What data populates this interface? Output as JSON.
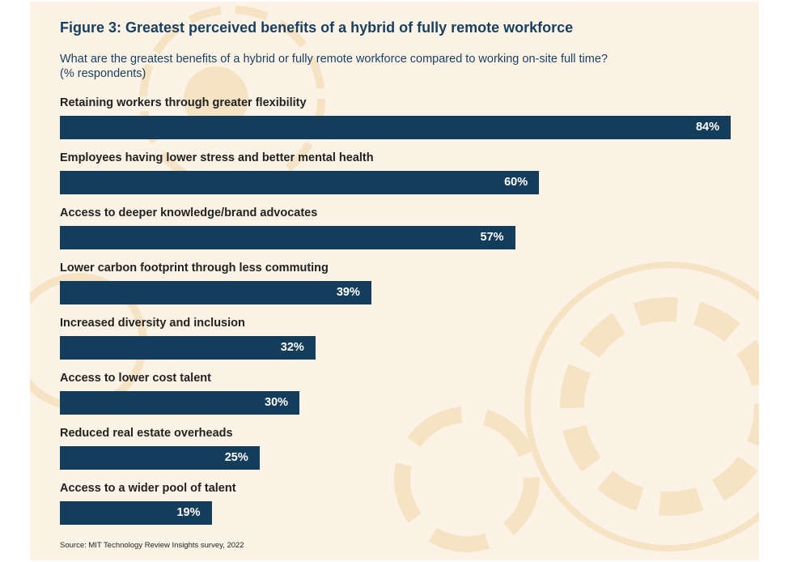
{
  "chart_data": {
    "type": "bar",
    "orientation": "horizontal",
    "title": "Figure 3: Greatest perceived benefits of a hybrid of fully remote workforce",
    "subtitle": "What are the greatest benefits of a hybrid or fully remote workforce compared to working on-site full time?",
    "unit_note": "(% respondents)",
    "categories": [
      "Retaining workers through greater flexibility",
      "Employees having lower stress and better mental health",
      "Access to deeper knowledge/brand advocates",
      "Lower carbon footprint through less commuting",
      "Increased diversity and inclusion",
      "Access to lower cost talent",
      "Reduced real estate overheads",
      "Access to a wider pool of talent"
    ],
    "values": [
      84,
      60,
      57,
      39,
      32,
      30,
      25,
      19
    ],
    "value_labels": [
      "84%",
      "60%",
      "57%",
      "39%",
      "32%",
      "30%",
      "25%",
      "19%"
    ],
    "xlim": [
      0,
      84
    ],
    "grid": false,
    "bar_color": "#143d5c",
    "source": "Source: MIT Technology Review Insights survey, 2022"
  },
  "colors": {
    "background": "#fcf3e6",
    "title": "#173f5f",
    "decoration": "#f6e2bf"
  }
}
